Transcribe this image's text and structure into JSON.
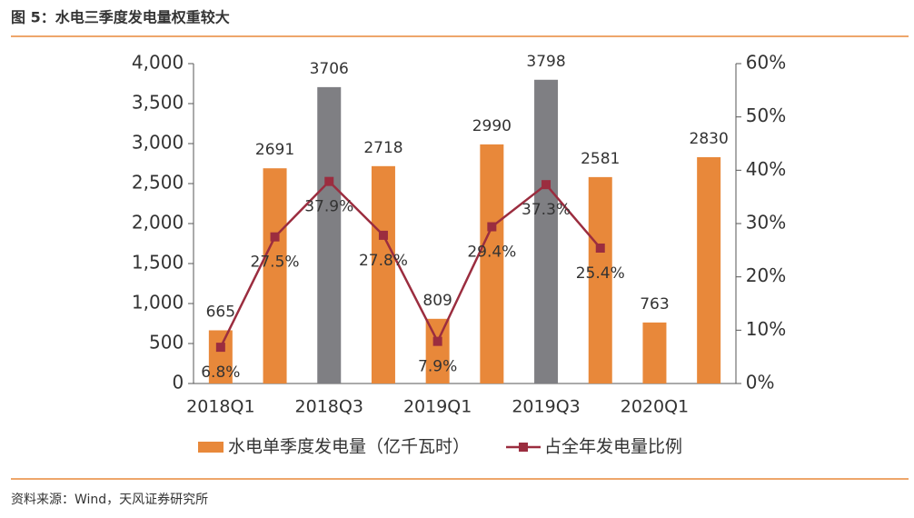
{
  "chart_data": {
    "type": "combo",
    "title": "图 5：水电三季度发电量权重较大",
    "source": "资料来源：Wind，天风证券研究所",
    "categories": [
      "2018Q1",
      null,
      "2018Q3",
      null,
      "2019Q1",
      null,
      "2019Q3",
      null,
      "2020Q1",
      null
    ],
    "series": [
      {
        "name": "水电单季度发电量（亿千瓦时）",
        "type": "bar",
        "color": "#e8883a",
        "colors": [
          "#e8883a",
          "#e8883a",
          "#7f7f83",
          "#e8883a",
          "#e8883a",
          "#e8883a",
          "#7f7f83",
          "#e8883a",
          "#e8883a",
          "#e8883a"
        ],
        "values": [
          665,
          2691,
          3706,
          2718,
          809,
          2990,
          3798,
          2581,
          763,
          2830
        ]
      },
      {
        "name": "占全年发电量比例",
        "type": "line",
        "axis": "y2",
        "color": "#9b2d3f",
        "values": [
          6.8,
          27.5,
          37.9,
          27.8,
          7.9,
          29.4,
          37.3,
          25.4,
          null,
          null
        ],
        "value_labels": [
          "6.8%",
          "27.5%",
          "37.9%",
          "27.8%",
          "7.9%",
          "29.4%",
          "37.3%",
          "25.4%",
          null,
          null
        ]
      }
    ],
    "ylim": [
      0,
      4000
    ],
    "yticks": [
      0,
      500,
      {
        "value": 1000,
        "label": "1,000"
      },
      {
        "value": 1500,
        "label": "1,500"
      },
      {
        "value": 2000,
        "label": "2,000"
      },
      {
        "value": 2500,
        "label": "2,500"
      },
      {
        "value": 3000,
        "label": "3,000"
      },
      {
        "value": 3500,
        "label": "3,500"
      },
      {
        "value": 4000,
        "label": "4,000"
      }
    ],
    "y2lim": [
      0,
      60
    ],
    "y2ticks": [
      {
        "value": 0,
        "label": "0%"
      },
      {
        "value": 10,
        "label": "10%"
      },
      {
        "value": 20,
        "label": "20%"
      },
      {
        "value": 30,
        "label": "30%"
      },
      {
        "value": 40,
        "label": "40%"
      },
      {
        "value": 50,
        "label": "50%"
      },
      {
        "value": 60,
        "label": "60%"
      }
    ],
    "grid": false,
    "legend": "bottom"
  }
}
